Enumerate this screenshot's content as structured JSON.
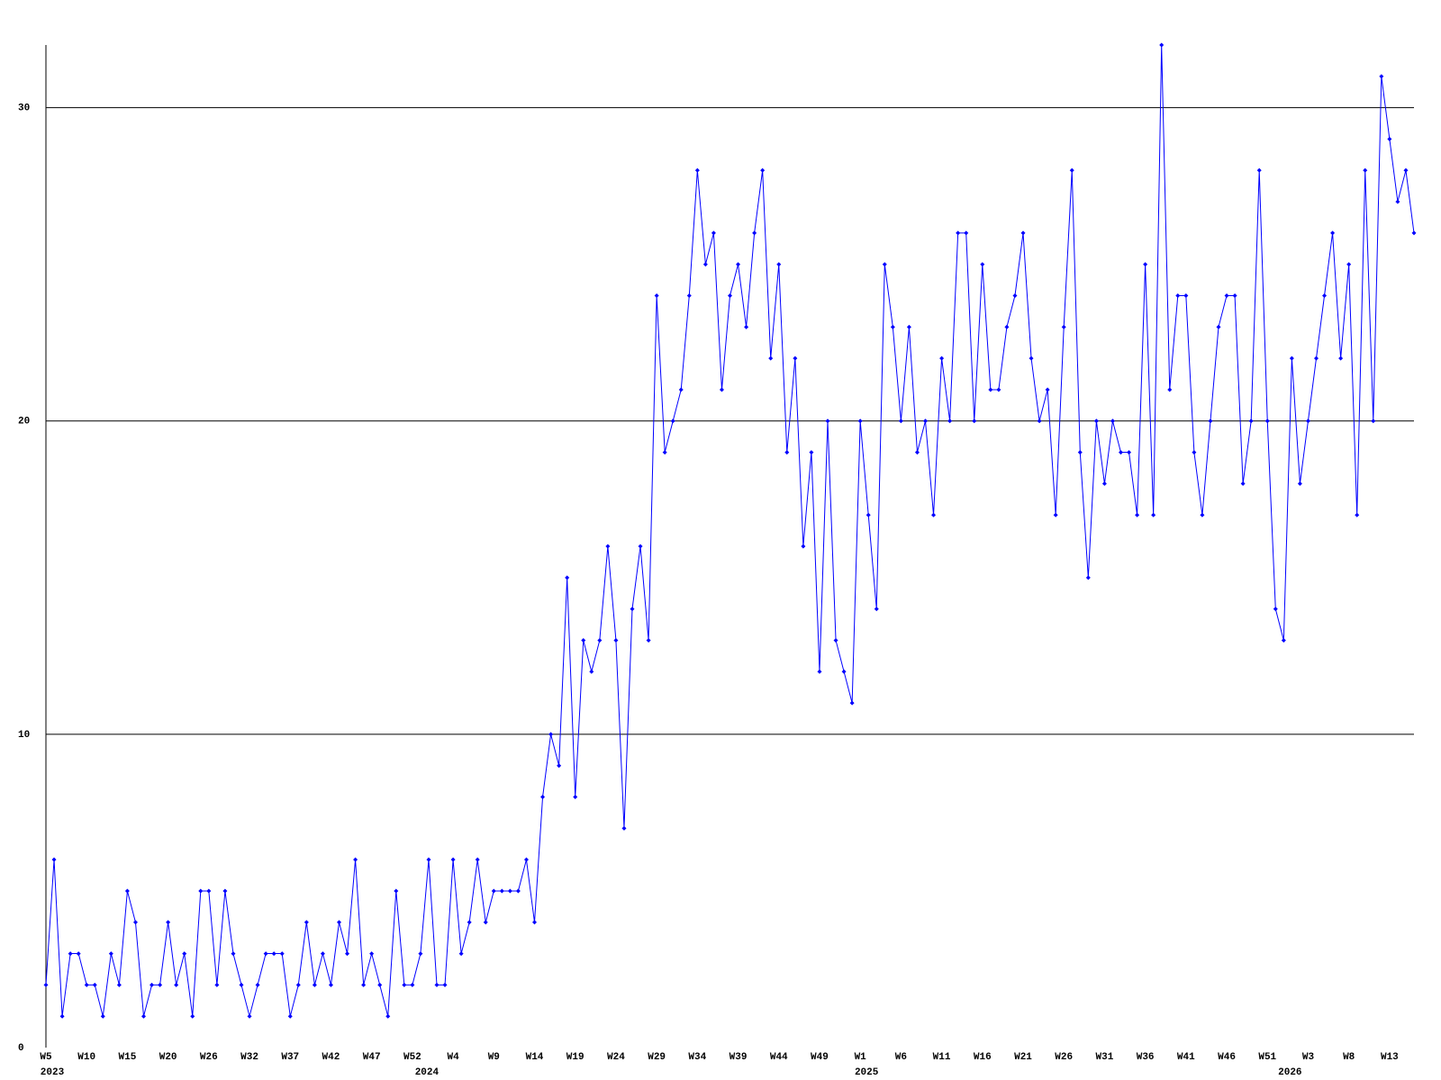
{
  "chart_data": {
    "type": "line",
    "color": "#0000ff",
    "categories": [
      "W5",
      null,
      null,
      null,
      null,
      "W10",
      null,
      null,
      null,
      null,
      "W15",
      null,
      null,
      null,
      null,
      "W20",
      null,
      null,
      null,
      null,
      "W26",
      null,
      null,
      null,
      null,
      "W32",
      null,
      null,
      null,
      null,
      "W37",
      null,
      null,
      null,
      null,
      "W42",
      null,
      null,
      null,
      null,
      "W47",
      null,
      null,
      null,
      null,
      "W52",
      null,
      null,
      null,
      null,
      "W4",
      null,
      null,
      null,
      null,
      "W9",
      null,
      null,
      null,
      null,
      "W14",
      null,
      null,
      null,
      null,
      "W19",
      null,
      null,
      null,
      null,
      "W24",
      null,
      null,
      null,
      null,
      "W29",
      null,
      null,
      null,
      null,
      "W34",
      null,
      null,
      null,
      null,
      "W39",
      null,
      null,
      null,
      null,
      "W44",
      null,
      null,
      null,
      null,
      "W49",
      null,
      null,
      null,
      null,
      "W1",
      null,
      null,
      null,
      null,
      "W6",
      null,
      null,
      null,
      null,
      "W11",
      null,
      null,
      null,
      null,
      "W16",
      null,
      null,
      null,
      null,
      "W21",
      null,
      null,
      null,
      null,
      "W26",
      null,
      null,
      null,
      null,
      "W31",
      null,
      null,
      null,
      null,
      "W36",
      null,
      null,
      null,
      null,
      "W41",
      null,
      null,
      null,
      null,
      "W46",
      null,
      null,
      null,
      null,
      "W51",
      null,
      null,
      null,
      null,
      "W3",
      null,
      null,
      null,
      null,
      "W8",
      null,
      null,
      null,
      null,
      "W13",
      null,
      null,
      null
    ],
    "years": [
      "2023",
      null,
      null,
      null,
      null,
      null,
      null,
      null,
      null,
      null,
      null,
      null,
      null,
      null,
      null,
      null,
      null,
      null,
      null,
      null,
      null,
      null,
      null,
      null,
      null,
      null,
      null,
      null,
      null,
      null,
      null,
      null,
      null,
      null,
      null,
      null,
      null,
      null,
      null,
      null,
      null,
      null,
      null,
      null,
      null,
      null,
      "2024",
      null,
      null,
      null,
      null,
      null,
      null,
      null,
      null,
      null,
      null,
      null,
      null,
      null,
      null,
      null,
      null,
      null,
      null,
      null,
      null,
      null,
      null,
      null,
      null,
      null,
      null,
      null,
      null,
      null,
      null,
      null,
      null,
      null,
      null,
      null,
      null,
      null,
      null,
      null,
      null,
      null,
      null,
      null,
      null,
      null,
      null,
      null,
      null,
      null,
      null,
      null,
      null,
      null,
      "2025",
      null,
      null,
      null,
      null,
      null,
      null,
      null,
      null,
      null,
      null,
      null,
      null,
      null,
      null,
      null,
      null,
      null,
      null,
      null,
      null,
      null,
      null,
      null,
      null,
      null,
      null,
      null,
      null,
      null,
      null,
      null,
      null,
      null,
      null,
      null,
      null,
      null,
      null,
      null,
      null,
      null,
      null,
      null,
      null,
      null,
      null,
      null,
      null,
      null,
      null,
      null,
      "2026",
      null,
      null,
      null,
      null,
      null,
      null,
      null,
      null,
      null,
      null,
      null,
      null,
      null,
      null,
      null
    ],
    "values": [
      2,
      6,
      1,
      3,
      3,
      2,
      2,
      1,
      3,
      2,
      5,
      4,
      1,
      2,
      2,
      4,
      2,
      3,
      1,
      5,
      5,
      2,
      5,
      3,
      2,
      1,
      2,
      3,
      3,
      3,
      1,
      2,
      4,
      2,
      3,
      2,
      4,
      3,
      6,
      2,
      3,
      2,
      1,
      5,
      2,
      2,
      3,
      6,
      2,
      2,
      6,
      3,
      4,
      6,
      4,
      5,
      5,
      5,
      5,
      6,
      4,
      8,
      10,
      9,
      15,
      8,
      13,
      12,
      13,
      16,
      13,
      7,
      14,
      16,
      13,
      24,
      19,
      20,
      21,
      24,
      28,
      25,
      26,
      21,
      24,
      25,
      23,
      26,
      28,
      22,
      25,
      19,
      22,
      16,
      19,
      12,
      20,
      13,
      12,
      11,
      20,
      17,
      14,
      25,
      23,
      20,
      23,
      19,
      20,
      17,
      22,
      20,
      26,
      26,
      20,
      25,
      21,
      21,
      23,
      24,
      26,
      22,
      20,
      21,
      17,
      23,
      28,
      19,
      15,
      20,
      18,
      20,
      19,
      19,
      17,
      25,
      17,
      32,
      21,
      24,
      24,
      19,
      17,
      20,
      23,
      24,
      24,
      18,
      20,
      28,
      20,
      14,
      13,
      22,
      18,
      20,
      22,
      24,
      26,
      22,
      25,
      17,
      28,
      20,
      31,
      29,
      27,
      28,
      26
    ],
    "ylim": [
      0,
      32
    ],
    "yticks": [
      0,
      10,
      20,
      30
    ],
    "grid": true
  }
}
